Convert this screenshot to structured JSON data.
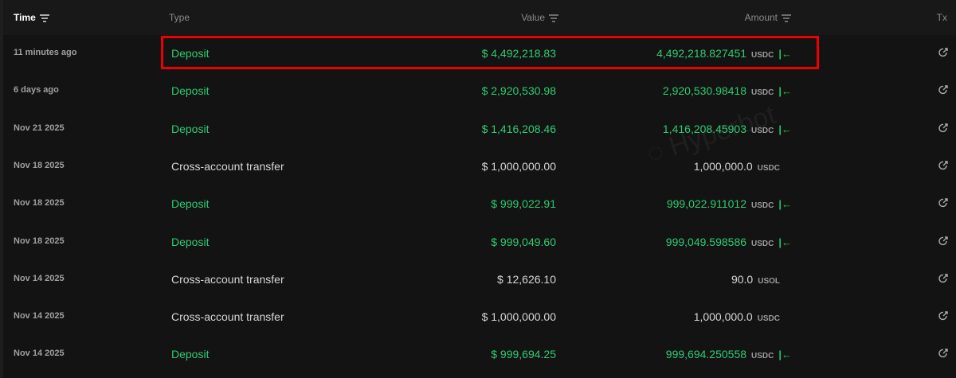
{
  "header": {
    "time": "Time",
    "type": "Type",
    "value": "Value",
    "amount": "Amount",
    "tx": "Tx"
  },
  "watermark": "Hyperbot",
  "colors": {
    "green": "#2ecc71",
    "highlight": "#e00000"
  },
  "rows": [
    {
      "time": "11 minutes ago",
      "type": "Deposit",
      "value": "$ 4,492,218.83",
      "amount": "4,492,218.827451",
      "unit": "USDC",
      "deposit": true
    },
    {
      "time": "6 days ago",
      "type": "Deposit",
      "value": "$ 2,920,530.98",
      "amount": "2,920,530.98418",
      "unit": "USDC",
      "deposit": true
    },
    {
      "time": "Nov 21 2025",
      "type": "Deposit",
      "value": "$ 1,416,208.46",
      "amount": "1,416,208.45903",
      "unit": "USDC",
      "deposit": true
    },
    {
      "time": "Nov 18 2025",
      "type": "Cross-account transfer",
      "value": "$ 1,000,000.00",
      "amount": "1,000,000.0",
      "unit": "USDC",
      "deposit": false
    },
    {
      "time": "Nov 18 2025",
      "type": "Deposit",
      "value": "$ 999,022.91",
      "amount": "999,022.911012",
      "unit": "USDC",
      "deposit": true
    },
    {
      "time": "Nov 18 2025",
      "type": "Deposit",
      "value": "$ 999,049.60",
      "amount": "999,049.598586",
      "unit": "USDC",
      "deposit": true
    },
    {
      "time": "Nov 14 2025",
      "type": "Cross-account transfer",
      "value": "$ 12,626.10",
      "amount": "90.0",
      "unit": "USOL",
      "deposit": false
    },
    {
      "time": "Nov 14 2025",
      "type": "Cross-account transfer",
      "value": "$ 1,000,000.00",
      "amount": "1,000,000.0",
      "unit": "USDC",
      "deposit": false
    },
    {
      "time": "Nov 14 2025",
      "type": "Deposit",
      "value": "$ 999,694.25",
      "amount": "999,694.250558",
      "unit": "USDC",
      "deposit": true
    }
  ]
}
